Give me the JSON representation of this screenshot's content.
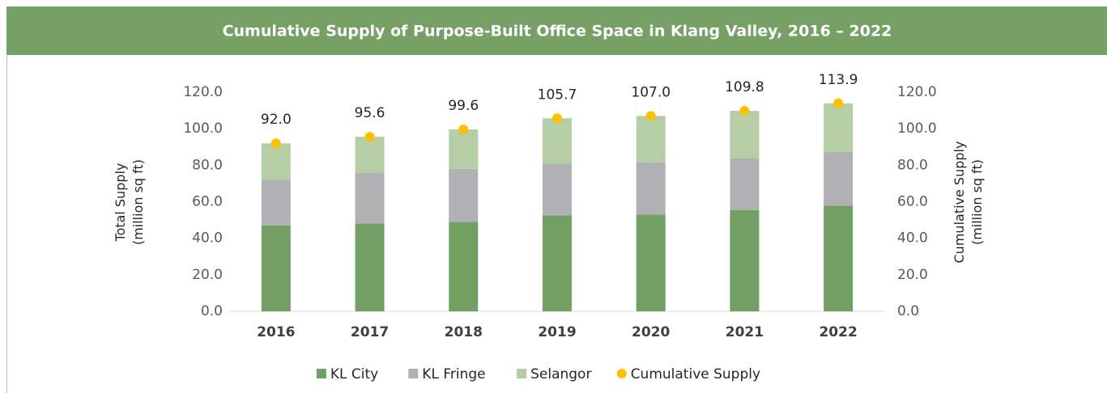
{
  "chart_data": {
    "type": "bar",
    "stacked": true,
    "title": "Cumulative Supply of Purpose-Built Office Space in Klang Valley, 2016 – 2022",
    "ylabel": [
      "Total Supply",
      "(million sq ft)"
    ],
    "y2label": [
      "Cumulative Supply",
      "(million sq ft)"
    ],
    "categories": [
      "2016",
      "2017",
      "2018",
      "2019",
      "2020",
      "2021",
      "2022"
    ],
    "series": [
      {
        "name": "KL City",
        "color": "#72a064",
        "values": [
          47.0,
          48.0,
          49.0,
          52.5,
          53.0,
          55.5,
          57.8
        ]
      },
      {
        "name": "KL Fringe",
        "color": "#b1b1b3",
        "values": [
          25.0,
          27.7,
          29.0,
          28.3,
          28.5,
          28.2,
          29.5
        ]
      },
      {
        "name": "Selangor",
        "color": "#b5cea6",
        "values": [
          20.0,
          19.9,
          21.6,
          24.9,
          25.5,
          26.1,
          26.6
        ]
      },
      {
        "name": "Cumulative Supply",
        "color": "#ffc000",
        "type": "scatter",
        "axis": "y2",
        "values": [
          92.0,
          95.6,
          99.6,
          105.7,
          107.0,
          109.8,
          113.9
        ],
        "value_labels": [
          "92.0",
          "95.6",
          "99.6",
          "105.7",
          "107.0",
          "109.8",
          "113.9"
        ]
      }
    ],
    "ylim": [
      0,
      120
    ],
    "yticks": [
      {
        "value": 0,
        "label": "0.0"
      },
      {
        "value": 20,
        "label": "20.0"
      },
      {
        "value": 40,
        "label": "40.0"
      },
      {
        "value": 60,
        "label": "60.0"
      },
      {
        "value": 80,
        "label": "80.0"
      },
      {
        "value": 100,
        "label": "100.0"
      },
      {
        "value": 120,
        "label": "120.0"
      }
    ],
    "y2lim": [
      0,
      120
    ],
    "y2ticks": [
      {
        "value": 0,
        "label": "0.0"
      },
      {
        "value": 20,
        "label": "20.0"
      },
      {
        "value": 40,
        "label": "40.0"
      },
      {
        "value": 60,
        "label": "60.0"
      },
      {
        "value": 80,
        "label": "80.0"
      },
      {
        "value": 100,
        "label": "100.0"
      },
      {
        "value": 120,
        "label": "120.0"
      }
    ],
    "grid": false,
    "legend": "bottom"
  }
}
